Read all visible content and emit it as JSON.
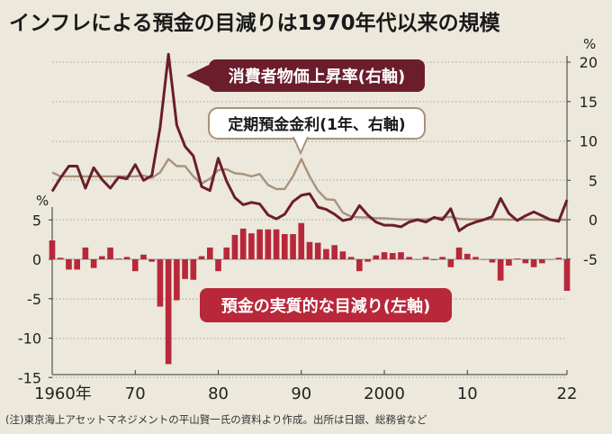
{
  "title": "インフレによる預金の目減りは1970年代以来の規模",
  "note": "(注)東京海上アセットマネジメントの平山賢一氏の資料より作成。出所は日銀、総務省など",
  "chart_data": {
    "type": "line+bar",
    "left_axis": {
      "unit": "%",
      "ticks": [
        "5",
        "0",
        "-5",
        "-10",
        "-15"
      ],
      "range": [
        -15,
        5
      ]
    },
    "right_axis": {
      "unit": "%",
      "ticks": [
        "20",
        "15",
        "10",
        "5",
        "0",
        "-5"
      ],
      "range": [
        -5,
        20
      ]
    },
    "x_ticks": [
      "1960年",
      "70",
      "80",
      "90",
      "2000",
      "10",
      "22"
    ],
    "years": [
      1960,
      1961,
      1962,
      1963,
      1964,
      1965,
      1966,
      1967,
      1968,
      1969,
      1970,
      1971,
      1972,
      1973,
      1974,
      1975,
      1976,
      1977,
      1978,
      1979,
      1980,
      1981,
      1982,
      1983,
      1984,
      1985,
      1986,
      1987,
      1988,
      1989,
      1990,
      1991,
      1992,
      1993,
      1994,
      1995,
      1996,
      1997,
      1998,
      1999,
      2000,
      2001,
      2002,
      2003,
      2004,
      2005,
      2006,
      2007,
      2008,
      2009,
      2010,
      2011,
      2012,
      2013,
      2014,
      2015,
      2016,
      2017,
      2018,
      2019,
      2020,
      2021,
      2022
    ],
    "series": [
      {
        "name": "消費者物価上昇率(右軸)",
        "color": "#6b1d2b",
        "axis": "right",
        "type": "line",
        "values": [
          3.6,
          5.3,
          6.8,
          6.8,
          4.0,
          6.6,
          5.1,
          4.0,
          5.4,
          5.2,
          7.0,
          5.0,
          5.6,
          11.7,
          21.0,
          12.0,
          9.3,
          8.1,
          4.2,
          3.7,
          7.8,
          4.9,
          2.8,
          1.9,
          2.2,
          2.0,
          0.6,
          0.1,
          0.7,
          2.3,
          3.1,
          3.3,
          1.6,
          1.3,
          0.7,
          -0.1,
          0.1,
          1.8,
          0.6,
          -0.3,
          -0.7,
          -0.7,
          -0.9,
          -0.3,
          0.0,
          -0.3,
          0.3,
          0.0,
          1.4,
          -1.4,
          -0.7,
          -0.3,
          0.0,
          0.4,
          2.7,
          0.8,
          -0.1,
          0.5,
          1.0,
          0.5,
          0.0,
          -0.2,
          2.5
        ]
      },
      {
        "name": "定期預金金利(1年、右軸)",
        "color": "#a89279",
        "axis": "right",
        "type": "line",
        "values": [
          6.0,
          5.5,
          5.5,
          5.5,
          5.5,
          5.5,
          5.5,
          5.5,
          5.5,
          5.5,
          5.5,
          5.6,
          5.3,
          6.0,
          7.7,
          6.8,
          6.8,
          5.5,
          4.6,
          5.2,
          6.3,
          6.4,
          5.9,
          5.8,
          5.5,
          5.8,
          4.4,
          3.9,
          3.9,
          5.5,
          7.7,
          5.5,
          3.7,
          2.6,
          2.5,
          0.9,
          0.4,
          0.3,
          0.3,
          0.2,
          0.2,
          0.1,
          0.03,
          0.03,
          0.03,
          0.03,
          0.2,
          0.3,
          0.35,
          0.1,
          0.05,
          0.03,
          0.03,
          0.03,
          0.03,
          0.01,
          0.01,
          0.01,
          0.01,
          0.01,
          0.002,
          0.002,
          0.002
        ]
      },
      {
        "name": "預金の実質的な目減り(左軸)",
        "color": "#b8283a",
        "axis": "left",
        "type": "bar",
        "values": [
          2.4,
          0.2,
          -1.3,
          -1.3,
          1.5,
          -1.1,
          0.4,
          1.5,
          0.1,
          0.3,
          -1.5,
          0.6,
          -0.3,
          -6.0,
          -13.3,
          -5.2,
          -2.5,
          -2.6,
          0.4,
          1.5,
          -1.5,
          1.5,
          3.1,
          3.9,
          3.3,
          3.8,
          3.8,
          3.8,
          3.2,
          3.2,
          4.6,
          2.2,
          2.1,
          1.3,
          1.8,
          1.0,
          0.3,
          -1.5,
          -0.3,
          0.5,
          0.9,
          0.8,
          0.9,
          0.3,
          0.0,
          0.3,
          -0.1,
          0.3,
          -1.0,
          1.5,
          0.7,
          0.3,
          0.0,
          -0.4,
          -2.7,
          -0.8,
          0.1,
          -0.5,
          -1.0,
          -0.5,
          0.0,
          0.2,
          -4.0
        ]
      }
    ],
    "annotations": [
      "消費者物価上昇率(右軸)",
      "定期預金金利(1年、右軸)",
      "預金の実質的な目減り(左軸)"
    ],
    "grid": "dotted horizontal"
  }
}
